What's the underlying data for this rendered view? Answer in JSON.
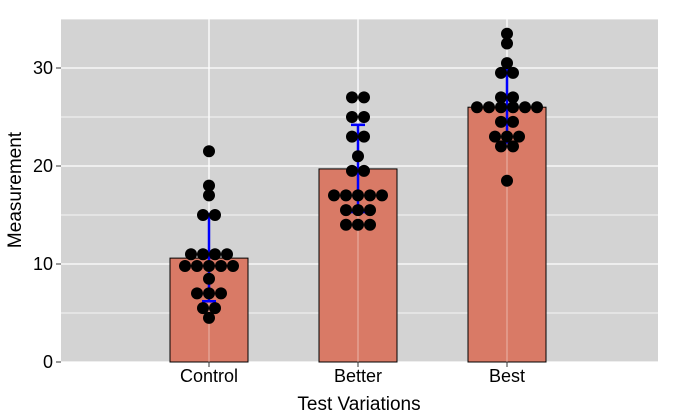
{
  "chart_data": {
    "type": "bar",
    "title": "",
    "xlabel": "Test Variations",
    "ylabel": "Measurement",
    "categories": [
      "Control",
      "Better",
      "Best"
    ],
    "values": [
      10.6,
      19.7,
      26.0
    ],
    "error_bars": {
      "Control": [
        6.2,
        15.1
      ],
      "Better": [
        15.3,
        24.2
      ],
      "Best": [
        22.4,
        29.8
      ]
    },
    "points": {
      "Control": [
        21.5,
        18.0,
        17.0,
        15.0,
        15.0,
        11.0,
        11.0,
        11.0,
        11.0,
        9.8,
        9.8,
        9.8,
        9.8,
        9.8,
        8.5,
        7.0,
        7.0,
        7.0,
        5.5,
        5.5,
        4.5
      ],
      "Better": [
        27.0,
        27.0,
        25.0,
        25.0,
        23.0,
        23.0,
        21.0,
        19.5,
        19.5,
        17.0,
        17.0,
        17.0,
        17.0,
        17.0,
        15.5,
        15.5,
        15.5,
        14.0,
        14.0,
        14.0
      ],
      "Best": [
        33.5,
        32.5,
        30.5,
        29.5,
        29.5,
        27.0,
        27.0,
        26.0,
        26.0,
        26.0,
        26.0,
        26.0,
        26.0,
        24.5,
        24.5,
        23.0,
        23.0,
        23.0,
        22.0,
        22.0,
        18.5
      ]
    },
    "yticks": [
      0,
      10,
      20,
      30
    ],
    "ylim": [
      0,
      35
    ],
    "grid": true,
    "colors": {
      "panel": "#d3d3d3",
      "grid": "#ffffff",
      "bar": "#d97a66",
      "bar_edge": "#000000",
      "error_bar": "#0000ff",
      "point": "#000000"
    }
  }
}
